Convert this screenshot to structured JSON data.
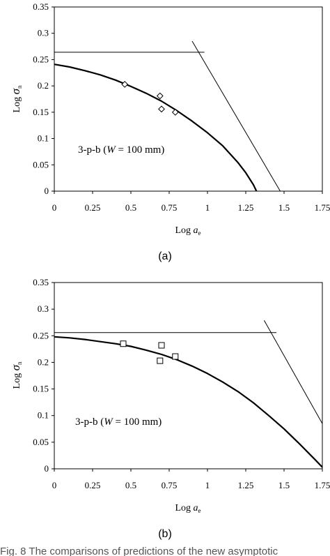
{
  "caption": "Fig. 8 The comparisons of predictions of the new asymptotic",
  "chart_data": [
    {
      "type": "line",
      "panel_label": "(a)",
      "xlabel": "Log a e",
      "xlabel_main": "Log ",
      "xlabel_var": "a",
      "xlabel_sub": "e",
      "ylabel": "Log σn",
      "ylabel_main": "Log ",
      "ylabel_var": "σ",
      "ylabel_sub": "n",
      "xlim": [
        0,
        1.75
      ],
      "ylim": [
        0,
        0.35
      ],
      "xticks": [
        "0",
        "0.25",
        "0.5",
        "0.75",
        "1",
        "1.25",
        "1.5",
        "1.75"
      ],
      "yticks": [
        "0",
        "0.05",
        "0.1",
        "0.15",
        "0.2",
        "0.25",
        "0.3",
        "0.35"
      ],
      "annotation": {
        "prefix": "3-p-b (",
        "var": "W",
        "suffix": " = 100 mm)",
        "x": 0.16,
        "y": 0.117
      },
      "series": [
        {
          "kind": "curve",
          "x": [
            0,
            0.1,
            0.2,
            0.3,
            0.4,
            0.5,
            0.6,
            0.7,
            0.8,
            0.9,
            1.0,
            1.1,
            1.2,
            1.25,
            1.3,
            1.32
          ],
          "y": [
            0.241,
            0.236,
            0.229,
            0.221,
            0.211,
            0.199,
            0.186,
            0.171,
            0.153,
            0.133,
            0.111,
            0.086,
            0.054,
            0.035,
            0.012,
            0.0
          ]
        },
        {
          "kind": "hline",
          "x": [
            0,
            0.98
          ],
          "y": [
            0.264,
            0.264
          ]
        },
        {
          "kind": "line",
          "x": [
            0.9,
            1.475
          ],
          "y": [
            0.285,
            0.0
          ]
        },
        {
          "kind": "markers",
          "marker": "diamond",
          "x": [
            0.46,
            0.69,
            0.7,
            0.79
          ],
          "y": [
            0.203,
            0.181,
            0.156,
            0.15
          ]
        }
      ]
    },
    {
      "type": "line",
      "panel_label": "(b)",
      "xlabel": "Log a e",
      "xlabel_main": "Log ",
      "xlabel_var": "a",
      "xlabel_sub": "e",
      "ylabel": "Log σn",
      "ylabel_main": "Log ",
      "ylabel_var": "σ",
      "ylabel_sub": "n",
      "xlim": [
        0,
        1.75
      ],
      "ylim": [
        0,
        0.35
      ],
      "xticks": [
        "0",
        "0.25",
        "0.5",
        "0.75",
        "1",
        "1.25",
        "1.5",
        "1.75"
      ],
      "yticks": [
        "0",
        "0.05",
        "0.1",
        "0.15",
        "0.2",
        "0.25",
        "0.3",
        "0.35"
      ],
      "annotation": {
        "prefix": "3-p-b (",
        "var": "W",
        "suffix": " = 100 mm)",
        "x": 0.14,
        "y": 0.085
      },
      "series": [
        {
          "kind": "curve",
          "x": [
            0,
            0.1,
            0.2,
            0.3,
            0.4,
            0.5,
            0.6,
            0.7,
            0.8,
            0.9,
            1.0,
            1.1,
            1.2,
            1.3,
            1.4,
            1.5,
            1.6,
            1.7,
            1.75
          ],
          "y": [
            0.248,
            0.246,
            0.243,
            0.239,
            0.235,
            0.23,
            0.223,
            0.215,
            0.205,
            0.193,
            0.179,
            0.163,
            0.145,
            0.124,
            0.1,
            0.075,
            0.047,
            0.018,
            0.003
          ]
        },
        {
          "kind": "hline",
          "x": [
            0,
            1.45
          ],
          "y": [
            0.256,
            0.256
          ]
        },
        {
          "kind": "line",
          "x": [
            1.37,
            1.75
          ],
          "y": [
            0.279,
            0.085
          ]
        },
        {
          "kind": "markers",
          "marker": "square",
          "x": [
            0.45,
            0.69,
            0.7,
            0.79
          ],
          "y": [
            0.235,
            0.203,
            0.232,
            0.211
          ]
        }
      ]
    }
  ]
}
